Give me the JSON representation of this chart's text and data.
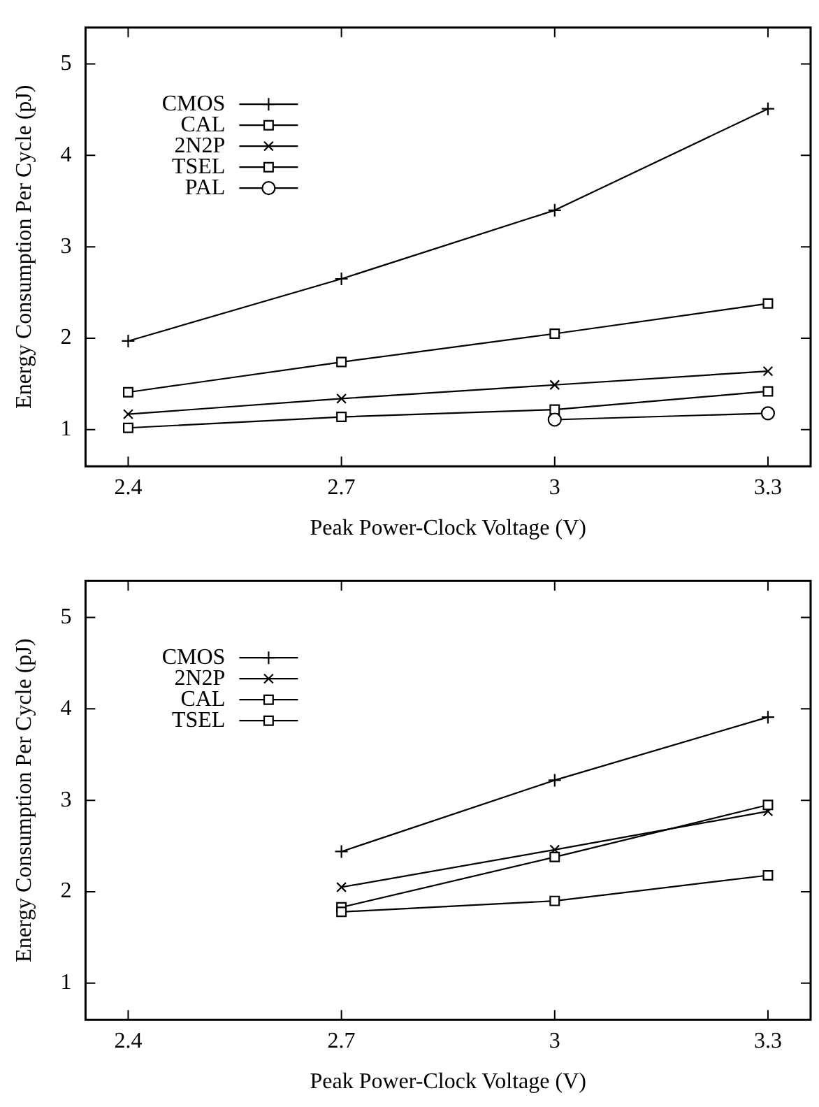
{
  "chart_data": [
    {
      "type": "line",
      "xlabel": "Peak Power-Clock Voltage (V)",
      "ylabel": "Energy Consumption Per Cycle (pJ)",
      "x": [
        2.4,
        2.7,
        3,
        3.3
      ],
      "xlim": [
        2.34,
        3.36
      ],
      "xticks": [
        2.4,
        2.7,
        3,
        3.3
      ],
      "ylim": [
        0.6,
        5.4
      ],
      "yticks": [
        1,
        2,
        3,
        4,
        5
      ],
      "legend": "top left",
      "series": [
        {
          "name": "CMOS",
          "color": "#000000",
          "marker": "cross",
          "values": [
            1.97,
            2.65,
            3.4,
            4.51
          ]
        },
        {
          "name": "CAL",
          "color": "#000000",
          "marker": "square",
          "values": [
            1.41,
            1.74,
            2.05,
            2.38
          ]
        },
        {
          "name": "2N2P",
          "color": "#000000",
          "marker": "x",
          "values": [
            1.17,
            1.34,
            1.49,
            1.64
          ]
        },
        {
          "name": "TSEL",
          "color": "#000000",
          "marker": "square",
          "values": [
            1.02,
            1.14,
            1.22,
            1.42
          ]
        },
        {
          "name": "PAL",
          "color": "#000000",
          "marker": "circle",
          "values": [
            null,
            null,
            1.11,
            1.18
          ]
        }
      ]
    },
    {
      "type": "line",
      "xlabel": "Peak Power-Clock Voltage (V)",
      "ylabel": "Energy Consumption Per Cycle (pJ)",
      "x": [
        2.7,
        3,
        3.3
      ],
      "xlim": [
        2.34,
        3.36
      ],
      "xticks": [
        2.4,
        2.7,
        3,
        3.3
      ],
      "ylim": [
        0.6,
        5.4
      ],
      "yticks": [
        1,
        2,
        3,
        4,
        5
      ],
      "legend": "top left",
      "series": [
        {
          "name": "CMOS",
          "color": "#000000",
          "marker": "cross",
          "values": [
            2.44,
            3.22,
            3.91
          ]
        },
        {
          "name": "2N2P",
          "color": "#000000",
          "marker": "x",
          "values": [
            2.05,
            2.46,
            2.88
          ]
        },
        {
          "name": "CAL",
          "color": "#000000",
          "marker": "square",
          "values": [
            1.83,
            2.38,
            2.95
          ]
        },
        {
          "name": "TSEL",
          "color": "#000000",
          "marker": "square",
          "values": [
            1.78,
            1.9,
            2.18
          ]
        }
      ]
    }
  ]
}
